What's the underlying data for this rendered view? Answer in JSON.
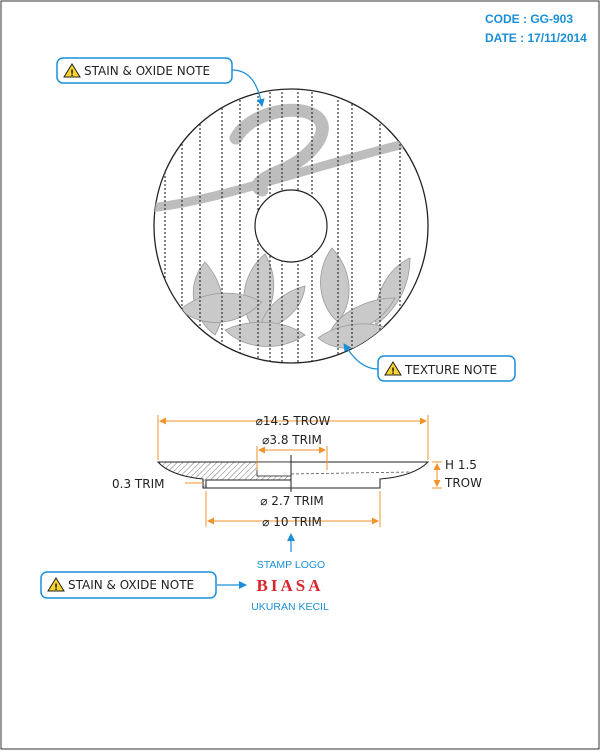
{
  "header": {
    "code": "CODE : GG-903",
    "date": "DATE : 17/11/2014"
  },
  "notes": {
    "stain_top": "STAIN & OXIDE NOTE",
    "texture": "TEXTURE NOTE",
    "stain_bottom": "STAIN & OXIDE NOTE",
    "warning_glyph": "!"
  },
  "dimensions": {
    "outer": "⌀14.5 TROW",
    "trim_top": "⌀3.8 TRIM",
    "height_line1": "H 1.5",
    "height_line2": "TROW",
    "thickness": "0.3 TRIM",
    "foot": "⌀ 2.7 TRIM",
    "base": "⌀ 10 TRIM"
  },
  "stamp": {
    "label": "STAMP LOGO",
    "brand": "BIASA",
    "size_note": "UKURAN KECIL"
  },
  "colors": {
    "accent_blue": "#1a8fd8",
    "dimension_orange": "#f0932b",
    "brand_red": "#d9262c",
    "warning_yellow": "#f7d32b",
    "glaze_gray": "#bdbdbd"
  }
}
